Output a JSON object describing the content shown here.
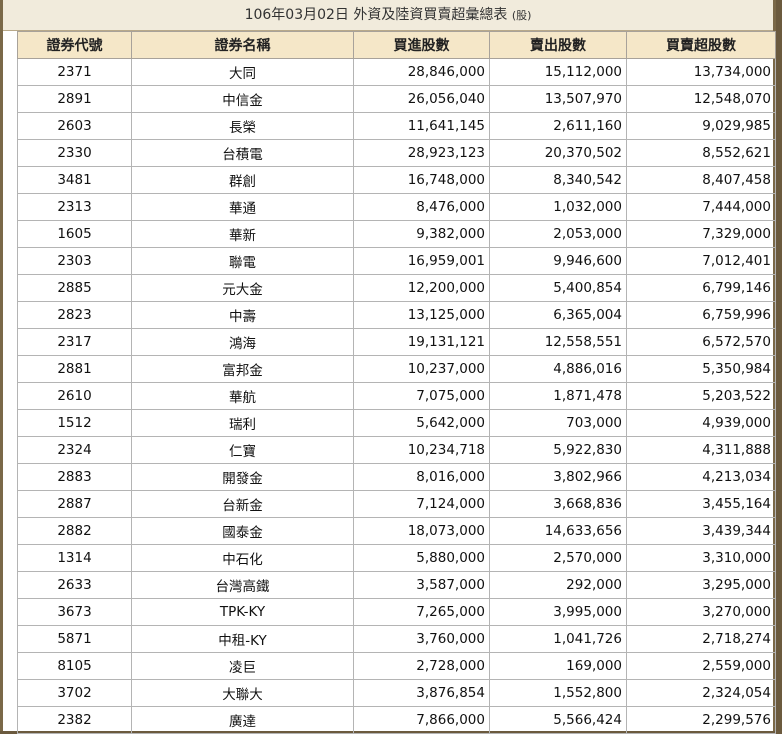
{
  "title": "106年03月02日 外資及陸資買賣超彙總表",
  "unit": "(股)",
  "headers": [
    "證券代號",
    "證券名稱",
    "買進股數",
    "賣出股數",
    "買賣超股數"
  ],
  "rows": [
    [
      "2371",
      "大同",
      "28,846,000",
      "15,112,000",
      "13,734,000"
    ],
    [
      "2891",
      "中信金",
      "26,056,040",
      "13,507,970",
      "12,548,070"
    ],
    [
      "2603",
      "長榮",
      "11,641,145",
      "2,611,160",
      "9,029,985"
    ],
    [
      "2330",
      "台積電",
      "28,923,123",
      "20,370,502",
      "8,552,621"
    ],
    [
      "3481",
      "群創",
      "16,748,000",
      "8,340,542",
      "8,407,458"
    ],
    [
      "2313",
      "華通",
      "8,476,000",
      "1,032,000",
      "7,444,000"
    ],
    [
      "1605",
      "華新",
      "9,382,000",
      "2,053,000",
      "7,329,000"
    ],
    [
      "2303",
      "聯電",
      "16,959,001",
      "9,946,600",
      "7,012,401"
    ],
    [
      "2885",
      "元大金",
      "12,200,000",
      "5,400,854",
      "6,799,146"
    ],
    [
      "2823",
      "中壽",
      "13,125,000",
      "6,365,004",
      "6,759,996"
    ],
    [
      "2317",
      "鴻海",
      "19,131,121",
      "12,558,551",
      "6,572,570"
    ],
    [
      "2881",
      "富邦金",
      "10,237,000",
      "4,886,016",
      "5,350,984"
    ],
    [
      "2610",
      "華航",
      "7,075,000",
      "1,871,478",
      "5,203,522"
    ],
    [
      "1512",
      "瑞利",
      "5,642,000",
      "703,000",
      "4,939,000"
    ],
    [
      "2324",
      "仁寶",
      "10,234,718",
      "5,922,830",
      "4,311,888"
    ],
    [
      "2883",
      "開發金",
      "8,016,000",
      "3,802,966",
      "4,213,034"
    ],
    [
      "2887",
      "台新金",
      "7,124,000",
      "3,668,836",
      "3,455,164"
    ],
    [
      "2882",
      "國泰金",
      "18,073,000",
      "14,633,656",
      "3,439,344"
    ],
    [
      "1314",
      "中石化",
      "5,880,000",
      "2,570,000",
      "3,310,000"
    ],
    [
      "2633",
      "台灣高鐵",
      "3,587,000",
      "292,000",
      "3,295,000"
    ],
    [
      "3673",
      "TPK-KY",
      "7,265,000",
      "3,995,000",
      "3,270,000"
    ],
    [
      "5871",
      "中租-KY",
      "3,760,000",
      "1,041,726",
      "2,718,274"
    ],
    [
      "8105",
      "凌巨",
      "2,728,000",
      "169,000",
      "2,559,000"
    ],
    [
      "3702",
      "大聯大",
      "3,876,854",
      "1,552,800",
      "2,324,054"
    ],
    [
      "2382",
      "廣達",
      "7,866,000",
      "5,566,424",
      "2,299,576"
    ]
  ]
}
